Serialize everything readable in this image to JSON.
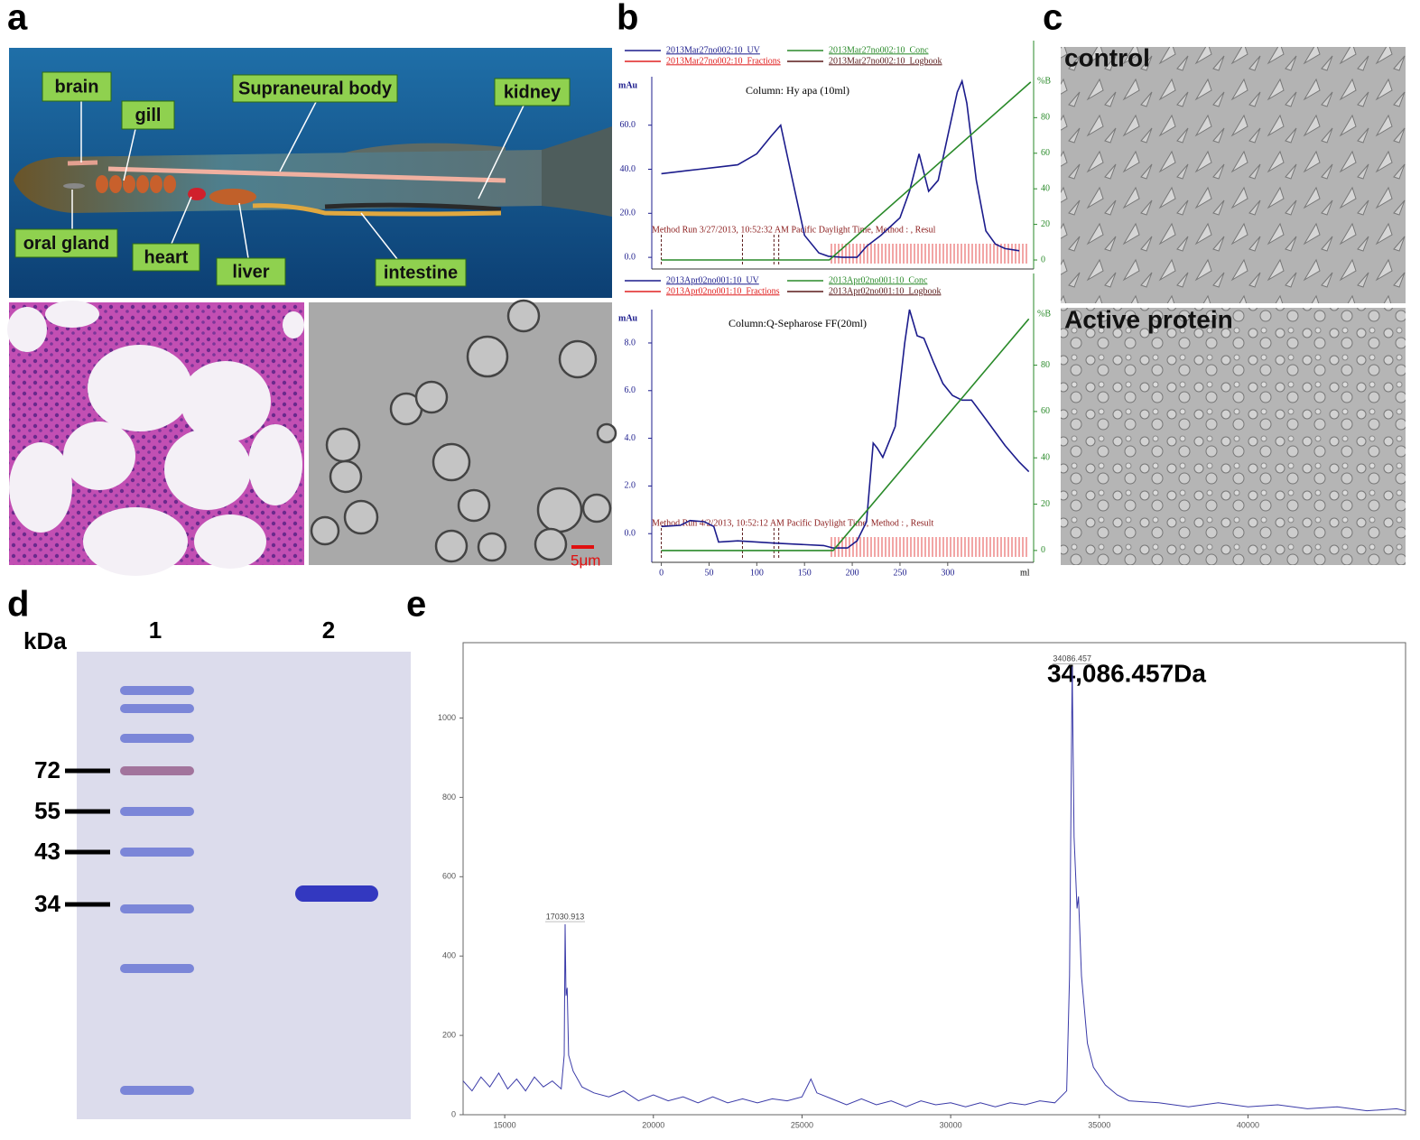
{
  "panel_labels": [
    "a",
    "b",
    "c",
    "d",
    "e"
  ],
  "panel_a": {
    "organs": [
      "brain",
      "gill",
      "Supraneural body",
      "kidney",
      "oral gland",
      "heart",
      "liver",
      "intestine"
    ],
    "scale_bar": "5μm"
  },
  "panel_c": {
    "conditions": [
      "control",
      "Active protein"
    ]
  },
  "panel_d": {
    "unit": "kDa",
    "lanes": [
      "1",
      "2"
    ],
    "markers": [
      72,
      55,
      43,
      34
    ]
  },
  "chart_data": [
    {
      "type": "line",
      "title": "Column: Hy apa  (10ml)",
      "y_label": "mAu",
      "y2_label": "%B",
      "annotation": "Method Run 3/27/2013, 10:52:32 AM Pacific Daylight Time, Method : , Resul",
      "xlim": [
        -10,
        390
      ],
      "ylim": [
        -2,
        82
      ],
      "y2lim": [
        -1,
        103
      ],
      "yticks": [
        {
          "value": 0,
          "label": "0.0"
        },
        {
          "value": 20,
          "label": "20.0"
        },
        {
          "value": 40,
          "label": "40.0"
        },
        {
          "value": 60,
          "label": "60.0"
        }
      ],
      "y2ticks": [
        0,
        20,
        40,
        60,
        80
      ],
      "series": [
        {
          "name": "2013Mar27no002:10_UV",
          "color": "#1c1c8c",
          "x": [
            0,
            20,
            40,
            60,
            80,
            100,
            115,
            125,
            135,
            150,
            165,
            175,
            190,
            205,
            215,
            230,
            240,
            250,
            260,
            270,
            280,
            290,
            300,
            310,
            315,
            320,
            330,
            340,
            350,
            360,
            375
          ],
          "values": [
            38,
            39,
            40,
            41,
            42,
            47,
            55,
            60,
            40,
            10,
            2,
            0.5,
            0,
            0,
            5,
            10,
            14,
            18,
            30,
            47,
            30,
            35,
            55,
            75,
            80,
            70,
            35,
            12,
            6,
            4,
            3
          ]
        },
        {
          "name": "2013Mar27no002:10_Conc",
          "color": "#2a8a2a",
          "axis": "y2",
          "x": [
            0,
            176,
            387
          ],
          "values": [
            0,
            0,
            100
          ]
        },
        {
          "name": "2013Mar27no002:10_Fractions",
          "color": "#e02020"
        },
        {
          "name": "2013Mar27no002:10_Logbook",
          "color": "#5a1a1a"
        }
      ]
    },
    {
      "type": "line",
      "title": "Column:Q-Sepharose FF(20ml)",
      "y_label": "mAu",
      "y2_label": "%B",
      "x_label": "ml",
      "annotation": "Method Run 4/2/2013, 10:52:12 AM Pacific Daylight Time, Method : , Result",
      "xlim": [
        -10,
        390
      ],
      "ylim": [
        -0.9,
        9.4
      ],
      "y2lim": [
        -2,
        104
      ],
      "xticks": [
        0,
        50,
        100,
        150,
        200,
        250,
        300
      ],
      "yticks": [
        {
          "value": 0,
          "label": "0.0"
        },
        {
          "value": 2,
          "label": "2.0"
        },
        {
          "value": 4,
          "label": "4.0"
        },
        {
          "value": 6,
          "label": "6.0"
        },
        {
          "value": 8,
          "label": "8.0"
        }
      ],
      "y2ticks": [
        0,
        20,
        40,
        60,
        80
      ],
      "series": [
        {
          "name": "2013Apr02no001:10_UV",
          "color": "#1c1c8c",
          "x": [
            0,
            20,
            30,
            45,
            55,
            60,
            80,
            120,
            170,
            180,
            195,
            205,
            215,
            222,
            226,
            232,
            245,
            255,
            260,
            268,
            275,
            285,
            295,
            305,
            315,
            325,
            340,
            360,
            375,
            385
          ],
          "values": [
            0.3,
            0.35,
            0.55,
            0.5,
            0.3,
            -0.35,
            -0.3,
            -0.4,
            -0.5,
            -0.6,
            -0.6,
            -0.3,
            0.5,
            3.8,
            3.6,
            3.2,
            4.5,
            8.0,
            9.4,
            8.3,
            8.2,
            7.2,
            6.3,
            5.8,
            5.6,
            5.6,
            4.8,
            3.7,
            3.0,
            2.6
          ]
        },
        {
          "name": "2013Apr02no001:10_Conc",
          "color": "#2a8a2a",
          "axis": "y2",
          "x": [
            0,
            180,
            385
          ],
          "values": [
            0,
            0,
            100
          ]
        },
        {
          "name": "2013Apr02no001:10_Fractions",
          "color": "#e02020"
        },
        {
          "name": "2013Apr02no001:10_Logbook",
          "color": "#5a1a1a"
        }
      ]
    },
    {
      "type": "line",
      "annotation": "34,086.457Da",
      "xlim": [
        13600,
        45300
      ],
      "ylim": [
        0,
        1190
      ],
      "xticks": [
        15000,
        20000,
        25000,
        30000,
        35000,
        40000
      ],
      "yticks": [
        0,
        200,
        400,
        600,
        800,
        1000
      ],
      "peaks": [
        {
          "x": 17030.913,
          "label": "17030.913"
        },
        {
          "x": 34086.457,
          "label": "34086.457"
        }
      ],
      "series": [
        {
          "color": "#3a3aa8",
          "x": [
            13600,
            13900,
            14200,
            14500,
            14800,
            15100,
            15400,
            15700,
            16000,
            16300,
            16600,
            16900,
            17000,
            17030,
            17060,
            17100,
            17150,
            17300,
            17600,
            18000,
            18500,
            19000,
            19500,
            20000,
            20500,
            21000,
            21500,
            22000,
            22500,
            23000,
            23500,
            24000,
            24500,
            25000,
            25300,
            25500,
            26000,
            26500,
            27000,
            27500,
            28000,
            28500,
            29000,
            29500,
            30000,
            30500,
            31000,
            31500,
            32000,
            32500,
            33000,
            33500,
            33900,
            34000,
            34086,
            34150,
            34250,
            34300,
            34400,
            34600,
            34800,
            35200,
            35600,
            36000,
            37000,
            38000,
            39000,
            40000,
            41000,
            42000,
            43000,
            44000,
            45000,
            45300
          ],
          "values": [
            85,
            60,
            95,
            70,
            105,
            65,
            90,
            60,
            95,
            70,
            85,
            65,
            150,
            480,
            300,
            320,
            150,
            110,
            70,
            55,
            45,
            60,
            35,
            50,
            35,
            45,
            30,
            45,
            30,
            40,
            30,
            40,
            35,
            45,
            90,
            55,
            40,
            25,
            40,
            25,
            35,
            20,
            35,
            25,
            30,
            20,
            30,
            20,
            30,
            25,
            35,
            30,
            60,
            350,
            1130,
            700,
            520,
            550,
            350,
            180,
            120,
            75,
            50,
            35,
            30,
            20,
            30,
            20,
            25,
            15,
            20,
            10,
            15,
            10
          ]
        }
      ]
    }
  ]
}
